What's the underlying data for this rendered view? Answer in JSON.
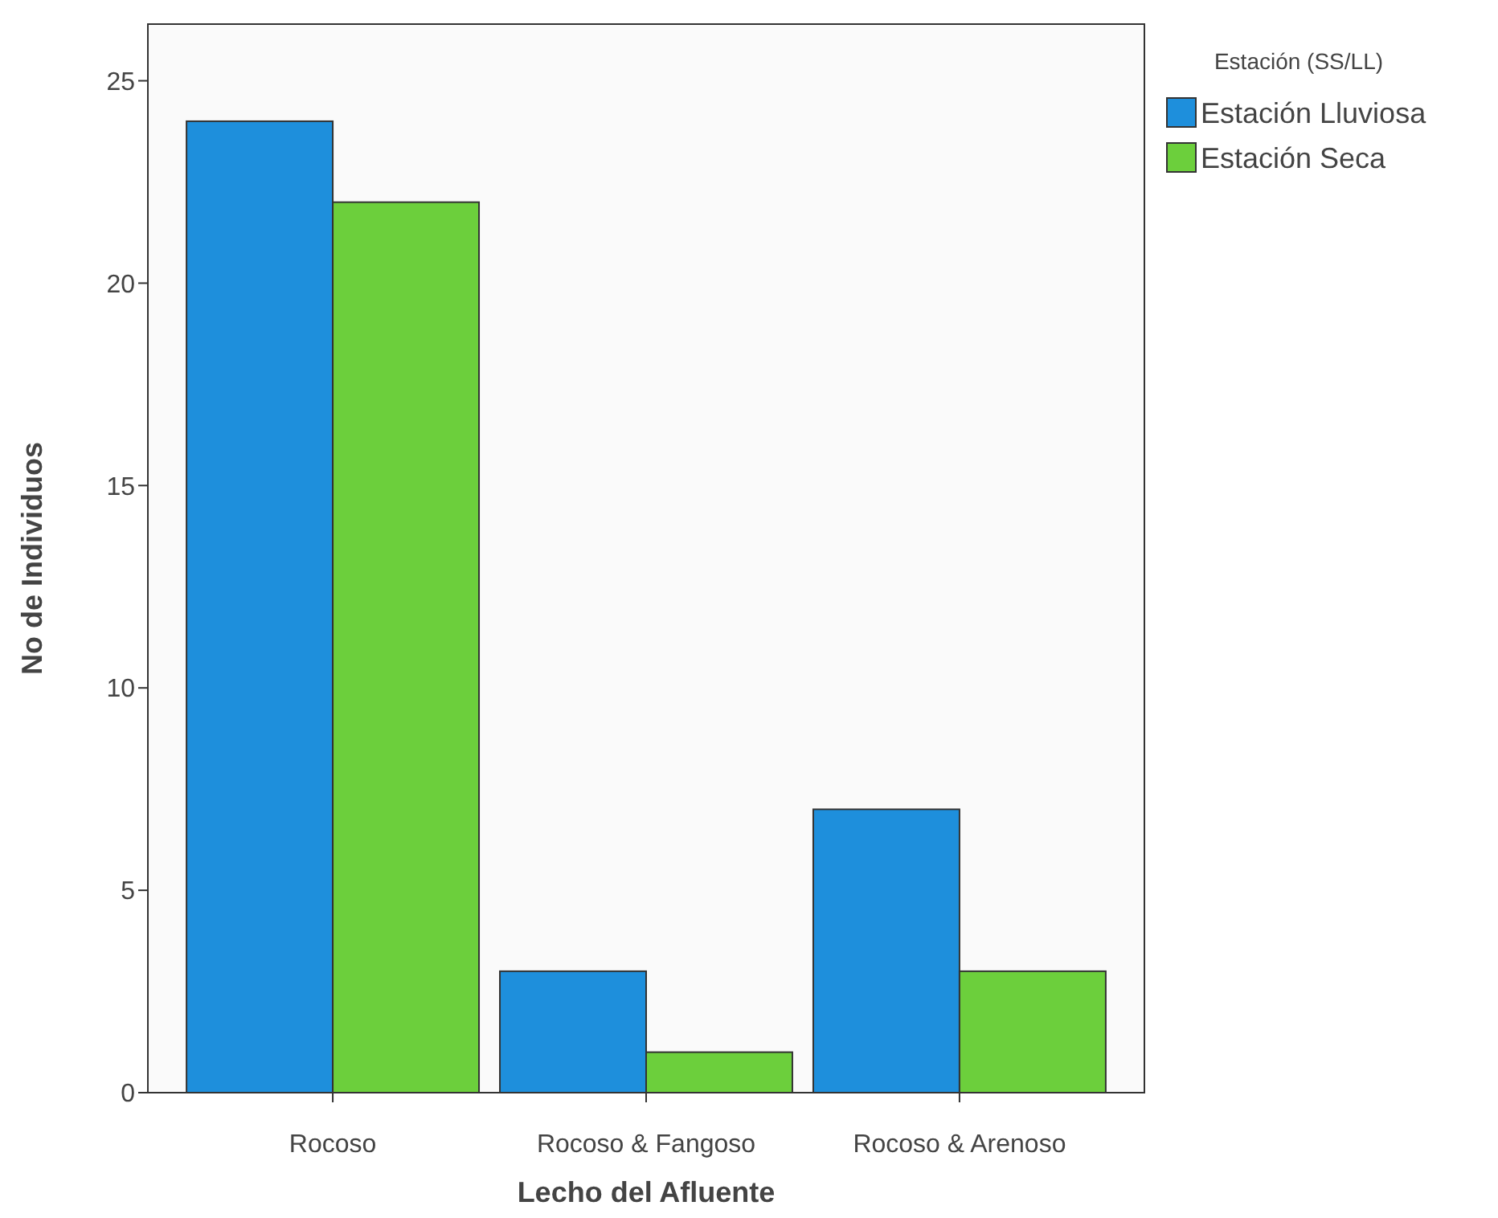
{
  "chart_data": {
    "type": "bar",
    "xlabel": "Lecho del Afluente",
    "ylabel": "No de Individuos",
    "legend_title": "Estación (SS/LL)",
    "categories": [
      "Rocoso",
      "Rocoso & Fangoso",
      "Rocoso & Arenoso"
    ],
    "series": [
      {
        "name": "Estación Lluviosa",
        "color": "#1e8fdc",
        "values": [
          24,
          3,
          7
        ]
      },
      {
        "name": "Estación Seca",
        "color": "#6ccf3c",
        "values": [
          22,
          1,
          3
        ]
      }
    ],
    "ylim": [
      0,
      26.4
    ],
    "yticks": [
      0,
      5,
      10,
      15,
      20,
      25
    ],
    "grid": false,
    "legend": "top right"
  }
}
